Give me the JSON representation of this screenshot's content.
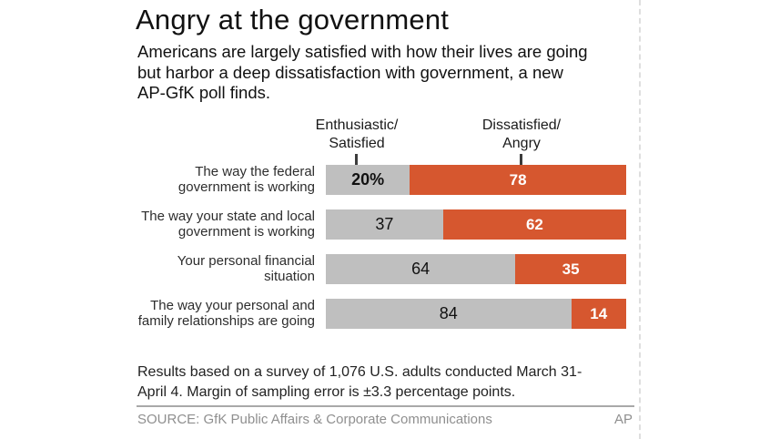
{
  "header": {
    "title": "Angry at the government",
    "subtitle_lines": [
      "Americans are largely satisfied with how their lives are going",
      "but harbor a deep dissatisfaction with government, a new",
      "AP-GfK poll finds."
    ]
  },
  "legend": {
    "satisfied_line1": "Enthusiastic/",
    "satisfied_line2": "Satisfied",
    "angry_line1": "Dissatisfied/",
    "angry_line2": "Angry"
  },
  "chart_data": {
    "type": "bar",
    "orientation": "horizontal",
    "stacked": true,
    "title": "Angry at the government",
    "categories": [
      "The way the federal government is working",
      "The way your state and local government is working",
      "Your personal financial situation",
      "The way your personal and family relationships are going"
    ],
    "series": [
      {
        "name": "Enthusiastic/Satisfied",
        "color": "#bfbfbf",
        "values": [
          20,
          37,
          64,
          84
        ]
      },
      {
        "name": "Dissatisfied/Angry",
        "color": "#d6572f",
        "values": [
          78,
          62,
          35,
          14
        ]
      }
    ],
    "unit": "percent",
    "legend_position": "top",
    "rows": [
      {
        "label_lines": [
          "The way the federal",
          "government is working"
        ],
        "satisfied": 20,
        "angry": 78,
        "satisfied_display": "20%",
        "angry_display": "78"
      },
      {
        "label_lines": [
          "The way your state and local",
          "government is working"
        ],
        "satisfied": 37,
        "angry": 62,
        "satisfied_display": "37",
        "angry_display": "62"
      },
      {
        "label_lines": [
          "Your personal financial situation"
        ],
        "satisfied": 64,
        "angry": 35,
        "satisfied_display": "64",
        "angry_display": "35"
      },
      {
        "label_lines": [
          "The way your personal and",
          "family relationships are going"
        ],
        "satisfied": 84,
        "angry": 14,
        "satisfied_display": "84",
        "angry_display": "14"
      }
    ]
  },
  "footer": {
    "note_lines": [
      "Results based on a survey of 1,076 U.S. adults conducted March 31-",
      "April 4. Margin of sampling error is ±3.3 percentage points."
    ],
    "source": "SOURCE: GfK Public Affairs & Corporate Communications",
    "credit": "AP"
  },
  "colors": {
    "satisfied": "#bfbfbf",
    "angry": "#d6572f",
    "muted": "#8f8f8f"
  }
}
